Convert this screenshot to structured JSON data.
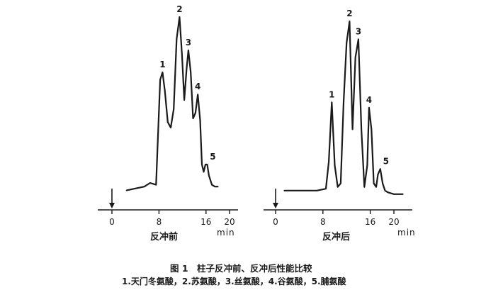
{
  "chart_data": [
    {
      "type": "line",
      "panel_label": "反冲前",
      "x_unit": "min",
      "xlim": [
        0,
        20
      ],
      "x_ticks": [
        0,
        8,
        16,
        20
      ],
      "x_tick_labels": [
        "0",
        "8",
        "16",
        "20"
      ],
      "injection_time": 0,
      "series": [
        {
          "x": [
            2.5,
            4,
            5.5,
            6.5,
            7.5,
            8.2,
            8.6,
            9.0,
            9.5,
            10.0,
            10.5,
            11.0,
            11.5,
            11.9,
            12.3,
            12.7,
            13.0,
            13.4,
            13.8,
            14.2,
            14.6,
            15.0,
            15.3,
            15.6,
            15.9,
            16.2,
            16.5,
            17.0,
            17.5,
            18.0
          ],
          "y": [
            0.06,
            0.07,
            0.08,
            0.1,
            0.09,
            0.66,
            0.7,
            0.6,
            0.43,
            0.4,
            0.5,
            0.88,
            1.0,
            0.8,
            0.55,
            0.72,
            0.82,
            0.7,
            0.45,
            0.48,
            0.58,
            0.44,
            0.2,
            0.16,
            0.2,
            0.2,
            0.14,
            0.09,
            0.08,
            0.08
          ]
        }
      ],
      "peaks": [
        {
          "label": "1",
          "x": 8.6,
          "y": 0.7
        },
        {
          "label": "2",
          "x": 11.5,
          "y": 1.0
        },
        {
          "label": "3",
          "x": 13.0,
          "y": 0.82
        },
        {
          "label": "4",
          "x": 14.6,
          "y": 0.58
        },
        {
          "label": "5",
          "x": 16.2,
          "y": 0.2
        }
      ]
    },
    {
      "type": "line",
      "panel_label": "反冲后",
      "x_unit": "min",
      "xlim": [
        0,
        20
      ],
      "x_ticks": [
        0,
        8,
        16,
        20
      ],
      "x_tick_labels": [
        "0",
        "8",
        "16",
        "20"
      ],
      "injection_time": 0,
      "series": [
        {
          "x": [
            1.5,
            3,
            5,
            7,
            8.5,
            9.0,
            9.5,
            10.0,
            10.5,
            11.0,
            11.5,
            12.0,
            12.5,
            13.0,
            13.5,
            14.0,
            14.5,
            15.0,
            15.5,
            15.8,
            16.2,
            16.6,
            17.0,
            17.3,
            17.7,
            18.1,
            18.5,
            19.0,
            20.0,
            21.5
          ],
          "y": [
            0.06,
            0.06,
            0.06,
            0.06,
            0.07,
            0.22,
            0.55,
            0.2,
            0.08,
            0.1,
            0.55,
            0.88,
            1.0,
            0.4,
            0.8,
            0.9,
            0.4,
            0.08,
            0.2,
            0.52,
            0.4,
            0.1,
            0.08,
            0.15,
            0.18,
            0.1,
            0.06,
            0.05,
            0.04,
            0.04
          ]
        }
      ],
      "peaks": [
        {
          "label": "1",
          "x": 9.5,
          "y": 0.55
        },
        {
          "label": "2",
          "x": 12.5,
          "y": 1.0
        },
        {
          "label": "3",
          "x": 14.0,
          "y": 0.9
        },
        {
          "label": "4",
          "x": 15.8,
          "y": 0.52
        },
        {
          "label": "5",
          "x": 17.7,
          "y": 0.18
        }
      ]
    }
  ],
  "caption": {
    "title": "图 1　柱子反冲前、反冲后性能比较",
    "legend_line": "1.天门冬氨酸，2.苏氨酸，3.丝氨酸，4.谷氨酸，5.脯氨酸"
  }
}
